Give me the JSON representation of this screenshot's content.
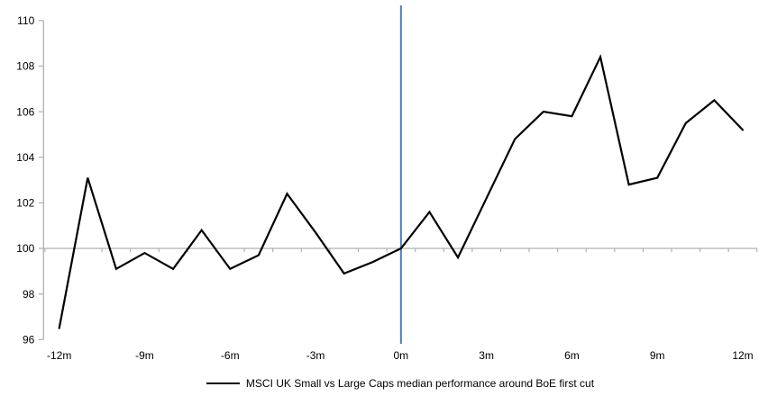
{
  "chart_data": {
    "type": "line",
    "title": "",
    "xlabel": "",
    "ylabel": "",
    "x": [
      -12,
      -11,
      -10,
      -9,
      -8,
      -7,
      -6,
      -5,
      -4,
      -3,
      -2,
      -1,
      0,
      1,
      2,
      3,
      4,
      5,
      6,
      7,
      8,
      9,
      10,
      11,
      12
    ],
    "series": [
      {
        "name": "MSCI UK Small vs Large Caps median performance around BoE first cut",
        "color": "#000000",
        "values": [
          96.5,
          103.1,
          99.1,
          99.8,
          99.1,
          100.8,
          99.1,
          99.7,
          102.4,
          100.7,
          98.9,
          99.4,
          100.0,
          101.6,
          99.6,
          102.2,
          104.8,
          106.0,
          105.8,
          108.4,
          102.8,
          103.1,
          105.5,
          106.5,
          105.2
        ]
      }
    ],
    "xlim": [
      -12,
      12
    ],
    "ylim": [
      96,
      110
    ],
    "yticks": [
      96,
      98,
      100,
      102,
      104,
      106,
      108,
      110
    ],
    "xticks": {
      "values": [
        -12,
        -9,
        -6,
        -3,
        0,
        3,
        6,
        9,
        12
      ],
      "labels": [
        "-12m",
        "-9m",
        "-6m",
        "-3m",
        "0m",
        "3m",
        "6m",
        "9m",
        "12m"
      ]
    },
    "baseline_value": 100,
    "event_line": {
      "x": 0,
      "color": "#4a80bd"
    },
    "axis_color": "#b0b0b0",
    "grid": false,
    "legend_position": "bottom"
  }
}
